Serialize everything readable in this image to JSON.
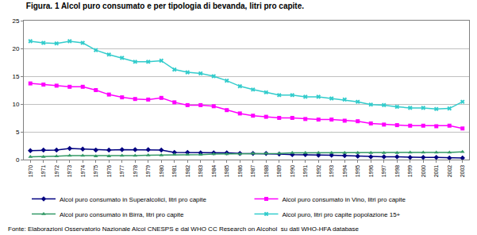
{
  "chart_data": {
    "type": "line",
    "title": "Figura. 1 Alcol puro consumato e per tipologia di bevanda, litri pro capite.",
    "source": "Fonte: Elaborazioni Osservatorio Nazionale Alcol CNESPS e dal WHO CC Research on Alcohol  su dati WHO-HFA database",
    "categories": [
      "1970",
      "1971",
      "1972",
      "1973",
      "1974",
      "1975",
      "1976",
      "1977",
      "1978",
      "1979",
      "1980",
      "1981",
      "1982",
      "1983",
      "1984",
      "1985",
      "1986",
      "1987",
      "1988",
      "1989",
      "1990",
      "1991",
      "1992",
      "1993",
      "1994",
      "1995",
      "1996",
      "1997",
      "1998",
      "1999",
      "2000",
      "2001",
      "2002",
      "2003"
    ],
    "series": [
      {
        "name": "Alcol puro consumato in Superalcolici, litri pro capite",
        "color": "#000080",
        "marker": "diamond",
        "values": [
          1.6,
          1.7,
          1.7,
          2.0,
          1.9,
          1.7,
          1.7,
          1.8,
          1.8,
          1.8,
          1.7,
          1.3,
          1.3,
          1.2,
          1.2,
          1.2,
          1.1,
          1.1,
          1.1,
          1.0,
          0.9,
          0.9,
          0.8,
          0.8,
          0.7,
          0.6,
          0.5,
          0.5,
          0.5,
          0.4,
          0.4,
          0.4,
          0.3,
          0.3
        ]
      },
      {
        "name": "Alcol puro consumato in Vino, litri pro capite",
        "color": "#ff00ff",
        "marker": "square",
        "values": [
          13.7,
          13.5,
          13.3,
          13.1,
          13.1,
          12.5,
          11.7,
          11.2,
          10.9,
          10.8,
          11.1,
          10.3,
          9.8,
          9.8,
          9.6,
          8.9,
          8.3,
          7.9,
          7.7,
          7.5,
          7.5,
          7.3,
          7.2,
          7.2,
          7.0,
          6.9,
          6.5,
          6.3,
          6.2,
          6.1,
          6.1,
          6.0,
          6.1,
          5.6
        ]
      },
      {
        "name": "Alcol puro consumato in Birra, litri pro capite",
        "color": "#339966",
        "marker": "triangle-up",
        "values": [
          0.5,
          0.5,
          0.6,
          0.7,
          0.7,
          0.6,
          0.6,
          0.7,
          0.7,
          0.8,
          0.8,
          0.9,
          0.9,
          0.9,
          1.0,
          1.0,
          1.0,
          1.1,
          1.1,
          1.1,
          1.2,
          1.2,
          1.2,
          1.2,
          1.2,
          1.2,
          1.2,
          1.2,
          1.2,
          1.3,
          1.3,
          1.3,
          1.3,
          1.4
        ]
      },
      {
        "name": "Alcol puro, litri pro capite popolazione 15+",
        "color": "#33cccc",
        "marker": "x",
        "values": [
          21.3,
          21.0,
          20.9,
          21.3,
          21.0,
          19.7,
          18.9,
          18.3,
          17.6,
          17.6,
          17.8,
          16.2,
          15.7,
          15.5,
          15.0,
          14.2,
          13.2,
          12.6,
          12.1,
          11.6,
          11.6,
          11.3,
          11.3,
          11.0,
          10.8,
          10.4,
          9.9,
          9.8,
          9.5,
          9.3,
          9.3,
          9.1,
          9.2,
          10.4
        ]
      }
    ],
    "ylim": [
      0,
      25
    ],
    "yticks": [
      0,
      5,
      10,
      15,
      20,
      25
    ],
    "grid": true,
    "legend": "bottom"
  }
}
